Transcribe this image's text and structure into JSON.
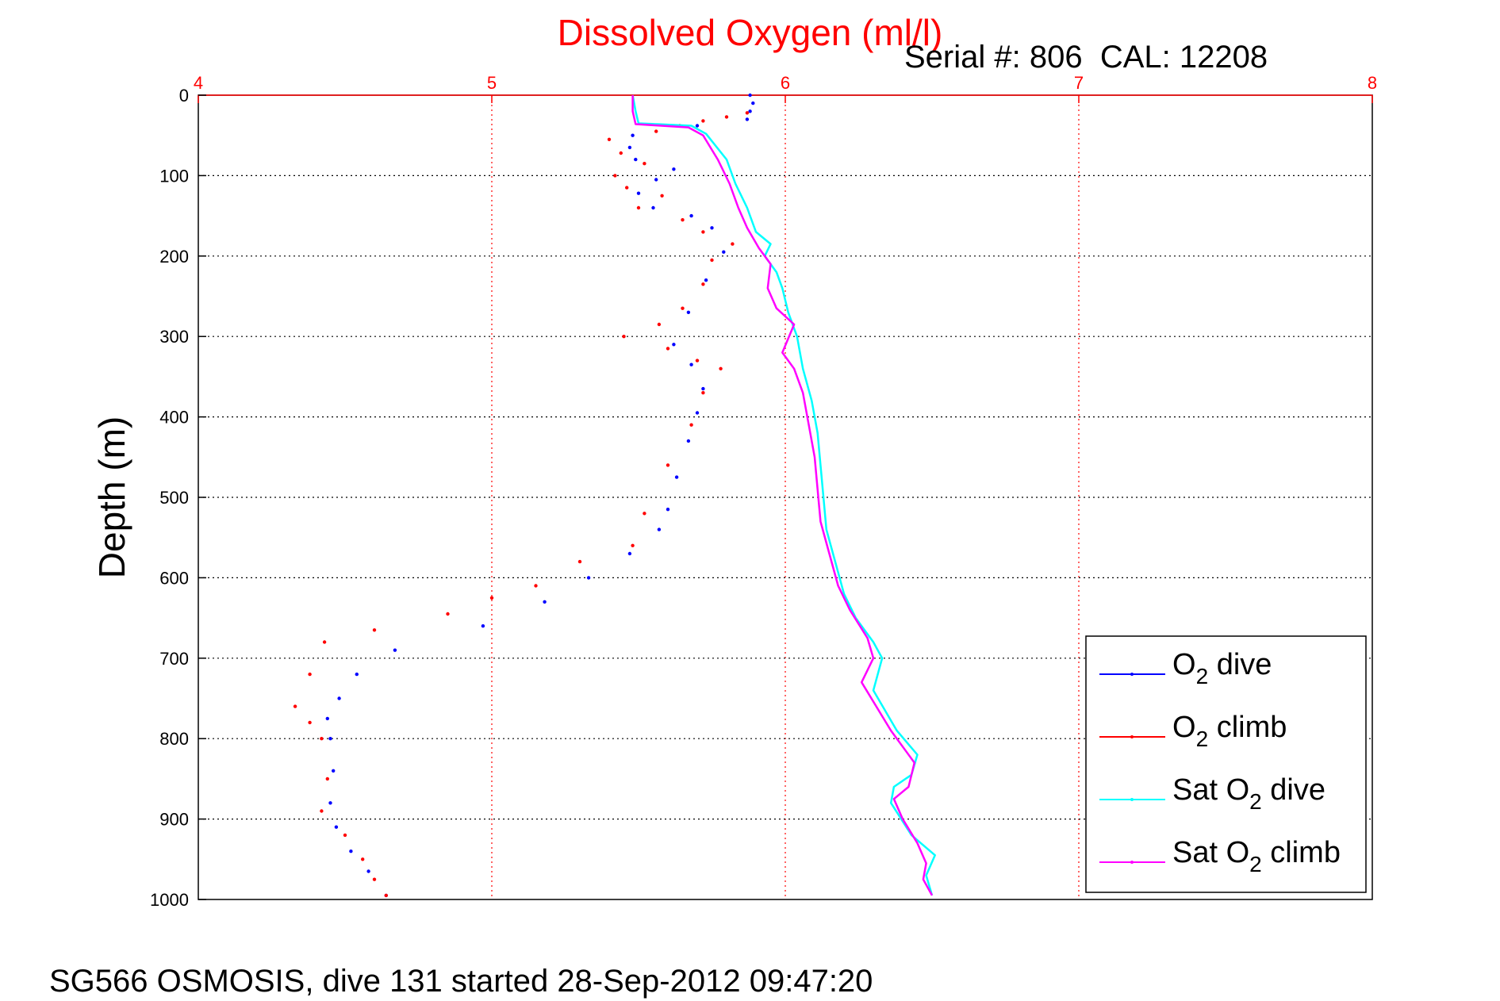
{
  "chart_data": {
    "type": "line",
    "title": "Dissolved Oxygen (ml/l)",
    "subtitle": "Serial #: 806  CAL: 12208",
    "footer": "SG566 OSMOSIS, dive 131 started 28-Sep-2012 09:47:20",
    "xlabel": "",
    "ylabel": "Depth (m)",
    "xlim": [
      4,
      8
    ],
    "ylim": [
      1000,
      0
    ],
    "xticks": [
      "4",
      "5",
      "6",
      "7",
      "8"
    ],
    "yticks": [
      "0",
      "100",
      "200",
      "300",
      "400",
      "500",
      "600",
      "700",
      "800",
      "900",
      "1000"
    ],
    "grid": true,
    "y_reversed": true,
    "x_axis_position": "top",
    "legend_position": "bottom-right",
    "colors": {
      "title": "#ff0000",
      "x_ticks": "#ff0000",
      "x_grid": "#ff0000",
      "y_grid": "#000000",
      "o2_dive": "#0000ff",
      "o2_climb": "#ff0000",
      "sat_dive": "#00ffff",
      "sat_climb": "#ff00ff"
    },
    "series": [
      {
        "name": "O2 dive",
        "name_main": "O",
        "name_sub": "2",
        "name_rest": "dive",
        "color": "#0000ff",
        "style": "dots",
        "points": [
          [
            5.88,
            0
          ],
          [
            5.89,
            10
          ],
          [
            5.88,
            20
          ],
          [
            5.87,
            30
          ],
          [
            5.7,
            38
          ],
          [
            5.48,
            50
          ],
          [
            5.47,
            65
          ],
          [
            5.49,
            80
          ],
          [
            5.62,
            92
          ],
          [
            5.56,
            105
          ],
          [
            5.5,
            122
          ],
          [
            5.55,
            140
          ],
          [
            5.68,
            150
          ],
          [
            5.75,
            165
          ],
          [
            5.79,
            195
          ],
          [
            5.73,
            230
          ],
          [
            5.67,
            270
          ],
          [
            5.62,
            310
          ],
          [
            5.68,
            335
          ],
          [
            5.72,
            365
          ],
          [
            5.7,
            395
          ],
          [
            5.67,
            430
          ],
          [
            5.63,
            475
          ],
          [
            5.6,
            515
          ],
          [
            5.57,
            540
          ],
          [
            5.47,
            570
          ],
          [
            5.33,
            600
          ],
          [
            5.18,
            630
          ],
          [
            4.97,
            660
          ],
          [
            4.67,
            690
          ],
          [
            4.54,
            720
          ],
          [
            4.48,
            750
          ],
          [
            4.44,
            775
          ],
          [
            4.45,
            800
          ],
          [
            4.46,
            840
          ],
          [
            4.45,
            880
          ],
          [
            4.47,
            910
          ],
          [
            4.52,
            940
          ],
          [
            4.58,
            965
          ],
          [
            4.64,
            995
          ]
        ]
      },
      {
        "name": "O2 climb",
        "name_main": "O",
        "name_sub": "2",
        "name_rest": "climb",
        "color": "#ff0000",
        "style": "dots",
        "points": [
          [
            5.87,
            22
          ],
          [
            5.8,
            27
          ],
          [
            5.72,
            32
          ],
          [
            5.64,
            38
          ],
          [
            5.56,
            45
          ],
          [
            5.4,
            55
          ],
          [
            5.44,
            72
          ],
          [
            5.52,
            85
          ],
          [
            5.42,
            100
          ],
          [
            5.46,
            115
          ],
          [
            5.58,
            125
          ],
          [
            5.5,
            140
          ],
          [
            5.65,
            155
          ],
          [
            5.72,
            170
          ],
          [
            5.82,
            185
          ],
          [
            5.75,
            205
          ],
          [
            5.72,
            235
          ],
          [
            5.65,
            265
          ],
          [
            5.57,
            285
          ],
          [
            5.45,
            300
          ],
          [
            5.6,
            315
          ],
          [
            5.7,
            330
          ],
          [
            5.78,
            340
          ],
          [
            5.72,
            370
          ],
          [
            5.68,
            410
          ],
          [
            5.6,
            460
          ],
          [
            5.52,
            520
          ],
          [
            5.48,
            560
          ],
          [
            5.3,
            580
          ],
          [
            5.15,
            610
          ],
          [
            5.0,
            625
          ],
          [
            4.85,
            645
          ],
          [
            4.6,
            665
          ],
          [
            4.43,
            680
          ],
          [
            4.38,
            720
          ],
          [
            4.33,
            760
          ],
          [
            4.38,
            780
          ],
          [
            4.42,
            800
          ],
          [
            4.44,
            850
          ],
          [
            4.42,
            890
          ],
          [
            4.5,
            920
          ],
          [
            4.56,
            950
          ],
          [
            4.6,
            975
          ],
          [
            4.64,
            995
          ]
        ]
      },
      {
        "name": "Sat O2 dive",
        "name_main": "Sat O",
        "name_sub": "2",
        "name_rest": "dive",
        "color": "#00ffff",
        "style": "line",
        "points": [
          [
            5.48,
            0
          ],
          [
            5.49,
            20
          ],
          [
            5.5,
            35
          ],
          [
            5.68,
            38
          ],
          [
            5.73,
            48
          ],
          [
            5.8,
            80
          ],
          [
            5.83,
            110
          ],
          [
            5.87,
            140
          ],
          [
            5.9,
            170
          ],
          [
            5.95,
            185
          ],
          [
            5.93,
            200
          ],
          [
            5.97,
            220
          ],
          [
            5.99,
            240
          ],
          [
            6.01,
            270
          ],
          [
            6.04,
            300
          ],
          [
            6.06,
            340
          ],
          [
            6.09,
            380
          ],
          [
            6.11,
            420
          ],
          [
            6.12,
            460
          ],
          [
            6.13,
            500
          ],
          [
            6.14,
            540
          ],
          [
            6.17,
            580
          ],
          [
            6.2,
            620
          ],
          [
            6.24,
            650
          ],
          [
            6.3,
            680
          ],
          [
            6.33,
            700
          ],
          [
            6.3,
            740
          ],
          [
            6.38,
            790
          ],
          [
            6.45,
            820
          ],
          [
            6.43,
            845
          ],
          [
            6.37,
            860
          ],
          [
            6.36,
            880
          ],
          [
            6.43,
            920
          ],
          [
            6.51,
            945
          ],
          [
            6.48,
            970
          ],
          [
            6.5,
            995
          ]
        ]
      },
      {
        "name": "Sat O2 climb",
        "name_main": "Sat O",
        "name_sub": "2",
        "name_rest": "climb",
        "color": "#ff00ff",
        "style": "line",
        "points": [
          [
            5.48,
            0
          ],
          [
            5.48,
            20
          ],
          [
            5.49,
            36
          ],
          [
            5.67,
            40
          ],
          [
            5.72,
            50
          ],
          [
            5.77,
            80
          ],
          [
            5.81,
            110
          ],
          [
            5.84,
            140
          ],
          [
            5.87,
            165
          ],
          [
            5.91,
            190
          ],
          [
            5.95,
            210
          ],
          [
            5.94,
            240
          ],
          [
            5.97,
            265
          ],
          [
            6.03,
            285
          ],
          [
            5.99,
            320
          ],
          [
            6.03,
            340
          ],
          [
            6.06,
            370
          ],
          [
            6.08,
            410
          ],
          [
            6.1,
            450
          ],
          [
            6.11,
            490
          ],
          [
            6.12,
            530
          ],
          [
            6.15,
            570
          ],
          [
            6.18,
            610
          ],
          [
            6.22,
            640
          ],
          [
            6.28,
            675
          ],
          [
            6.3,
            700
          ],
          [
            6.26,
            730
          ],
          [
            6.36,
            790
          ],
          [
            6.44,
            830
          ],
          [
            6.42,
            860
          ],
          [
            6.37,
            875
          ],
          [
            6.4,
            900
          ],
          [
            6.45,
            930
          ],
          [
            6.48,
            955
          ],
          [
            6.47,
            975
          ],
          [
            6.5,
            995
          ]
        ]
      }
    ]
  }
}
